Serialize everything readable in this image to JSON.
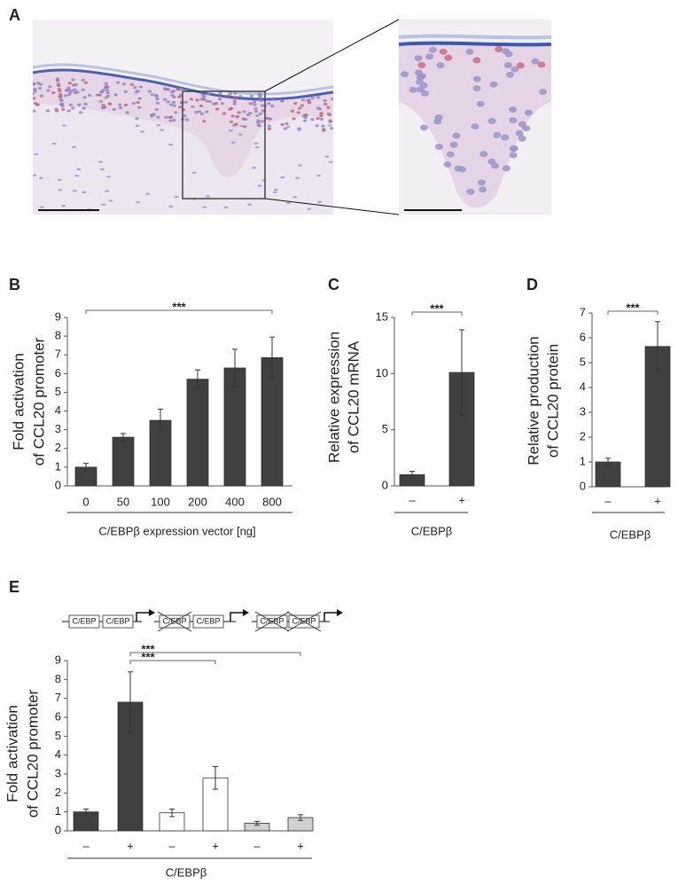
{
  "figure_a": {
    "panel": "A"
  },
  "diagram": {
    "labels": [
      "C/EBP",
      "C/EBP",
      "C/EBP",
      "C/EBP",
      "C/EBP",
      "C/EBP"
    ]
  },
  "chart_data": [
    {
      "type": "bar",
      "panel": "B",
      "ylabel": [
        "Fold activation",
        "of CCL20 promoter"
      ],
      "xlabel": "C/EBPβ expression vector [ng]",
      "categories": [
        "0",
        "50",
        "100",
        "200",
        "400",
        "800"
      ],
      "values": [
        1.0,
        2.6,
        3.5,
        5.7,
        6.3,
        6.85
      ],
      "errors": [
        0.2,
        0.2,
        0.6,
        0.5,
        1.0,
        1.1
      ],
      "colors": [
        "#404040",
        "#404040",
        "#404040",
        "#404040",
        "#404040",
        "#404040"
      ],
      "ylim": [
        0,
        9
      ],
      "yticks": [
        0,
        1,
        2,
        3,
        4,
        5,
        6,
        7,
        8,
        9
      ],
      "annotations": [
        "***"
      ]
    },
    {
      "type": "bar",
      "panel": "C",
      "ylabel": [
        "Relative expression",
        "of CCL20 mRNA"
      ],
      "xlabel": "C/EBPβ",
      "categories": [
        "–",
        "+"
      ],
      "values": [
        1.0,
        10.1
      ],
      "errors": [
        0.3,
        3.8
      ],
      "colors": [
        "#404040",
        "#404040"
      ],
      "ylim": [
        0,
        15
      ],
      "yticks": [
        0,
        5,
        10,
        15
      ],
      "annotations": [
        "***"
      ]
    },
    {
      "type": "bar",
      "panel": "D",
      "ylabel": [
        "Relative production",
        "of CCL20 protein"
      ],
      "xlabel": "C/EBPβ",
      "categories": [
        "–",
        "+"
      ],
      "values": [
        1.0,
        5.65
      ],
      "errors": [
        0.15,
        1.0
      ],
      "colors": [
        "#404040",
        "#404040"
      ],
      "ylim": [
        0,
        7
      ],
      "yticks": [
        0,
        1,
        2,
        3,
        4,
        5,
        6,
        7
      ],
      "annotations": [
        "***"
      ]
    },
    {
      "type": "bar",
      "panel": "E",
      "ylabel": [
        "Fold activation",
        "of CCL20 promoter"
      ],
      "xlabel": "C/EBPβ",
      "categories": [
        "–",
        "+",
        "–",
        "+",
        "–",
        "+"
      ],
      "values": [
        1.0,
        6.8,
        0.95,
        2.8,
        0.4,
        0.7
      ],
      "errors": [
        0.15,
        1.6,
        0.2,
        0.6,
        0.1,
        0.15
      ],
      "colors": [
        "#404040",
        "#404040",
        "#ffffff",
        "#ffffff",
        "#d0d0d0",
        "#d0d0d0"
      ],
      "ylim": [
        0,
        9
      ],
      "yticks": [
        0,
        1,
        2,
        3,
        4,
        5,
        6,
        7,
        8,
        9
      ],
      "annotations": [
        "***",
        "***"
      ]
    }
  ]
}
